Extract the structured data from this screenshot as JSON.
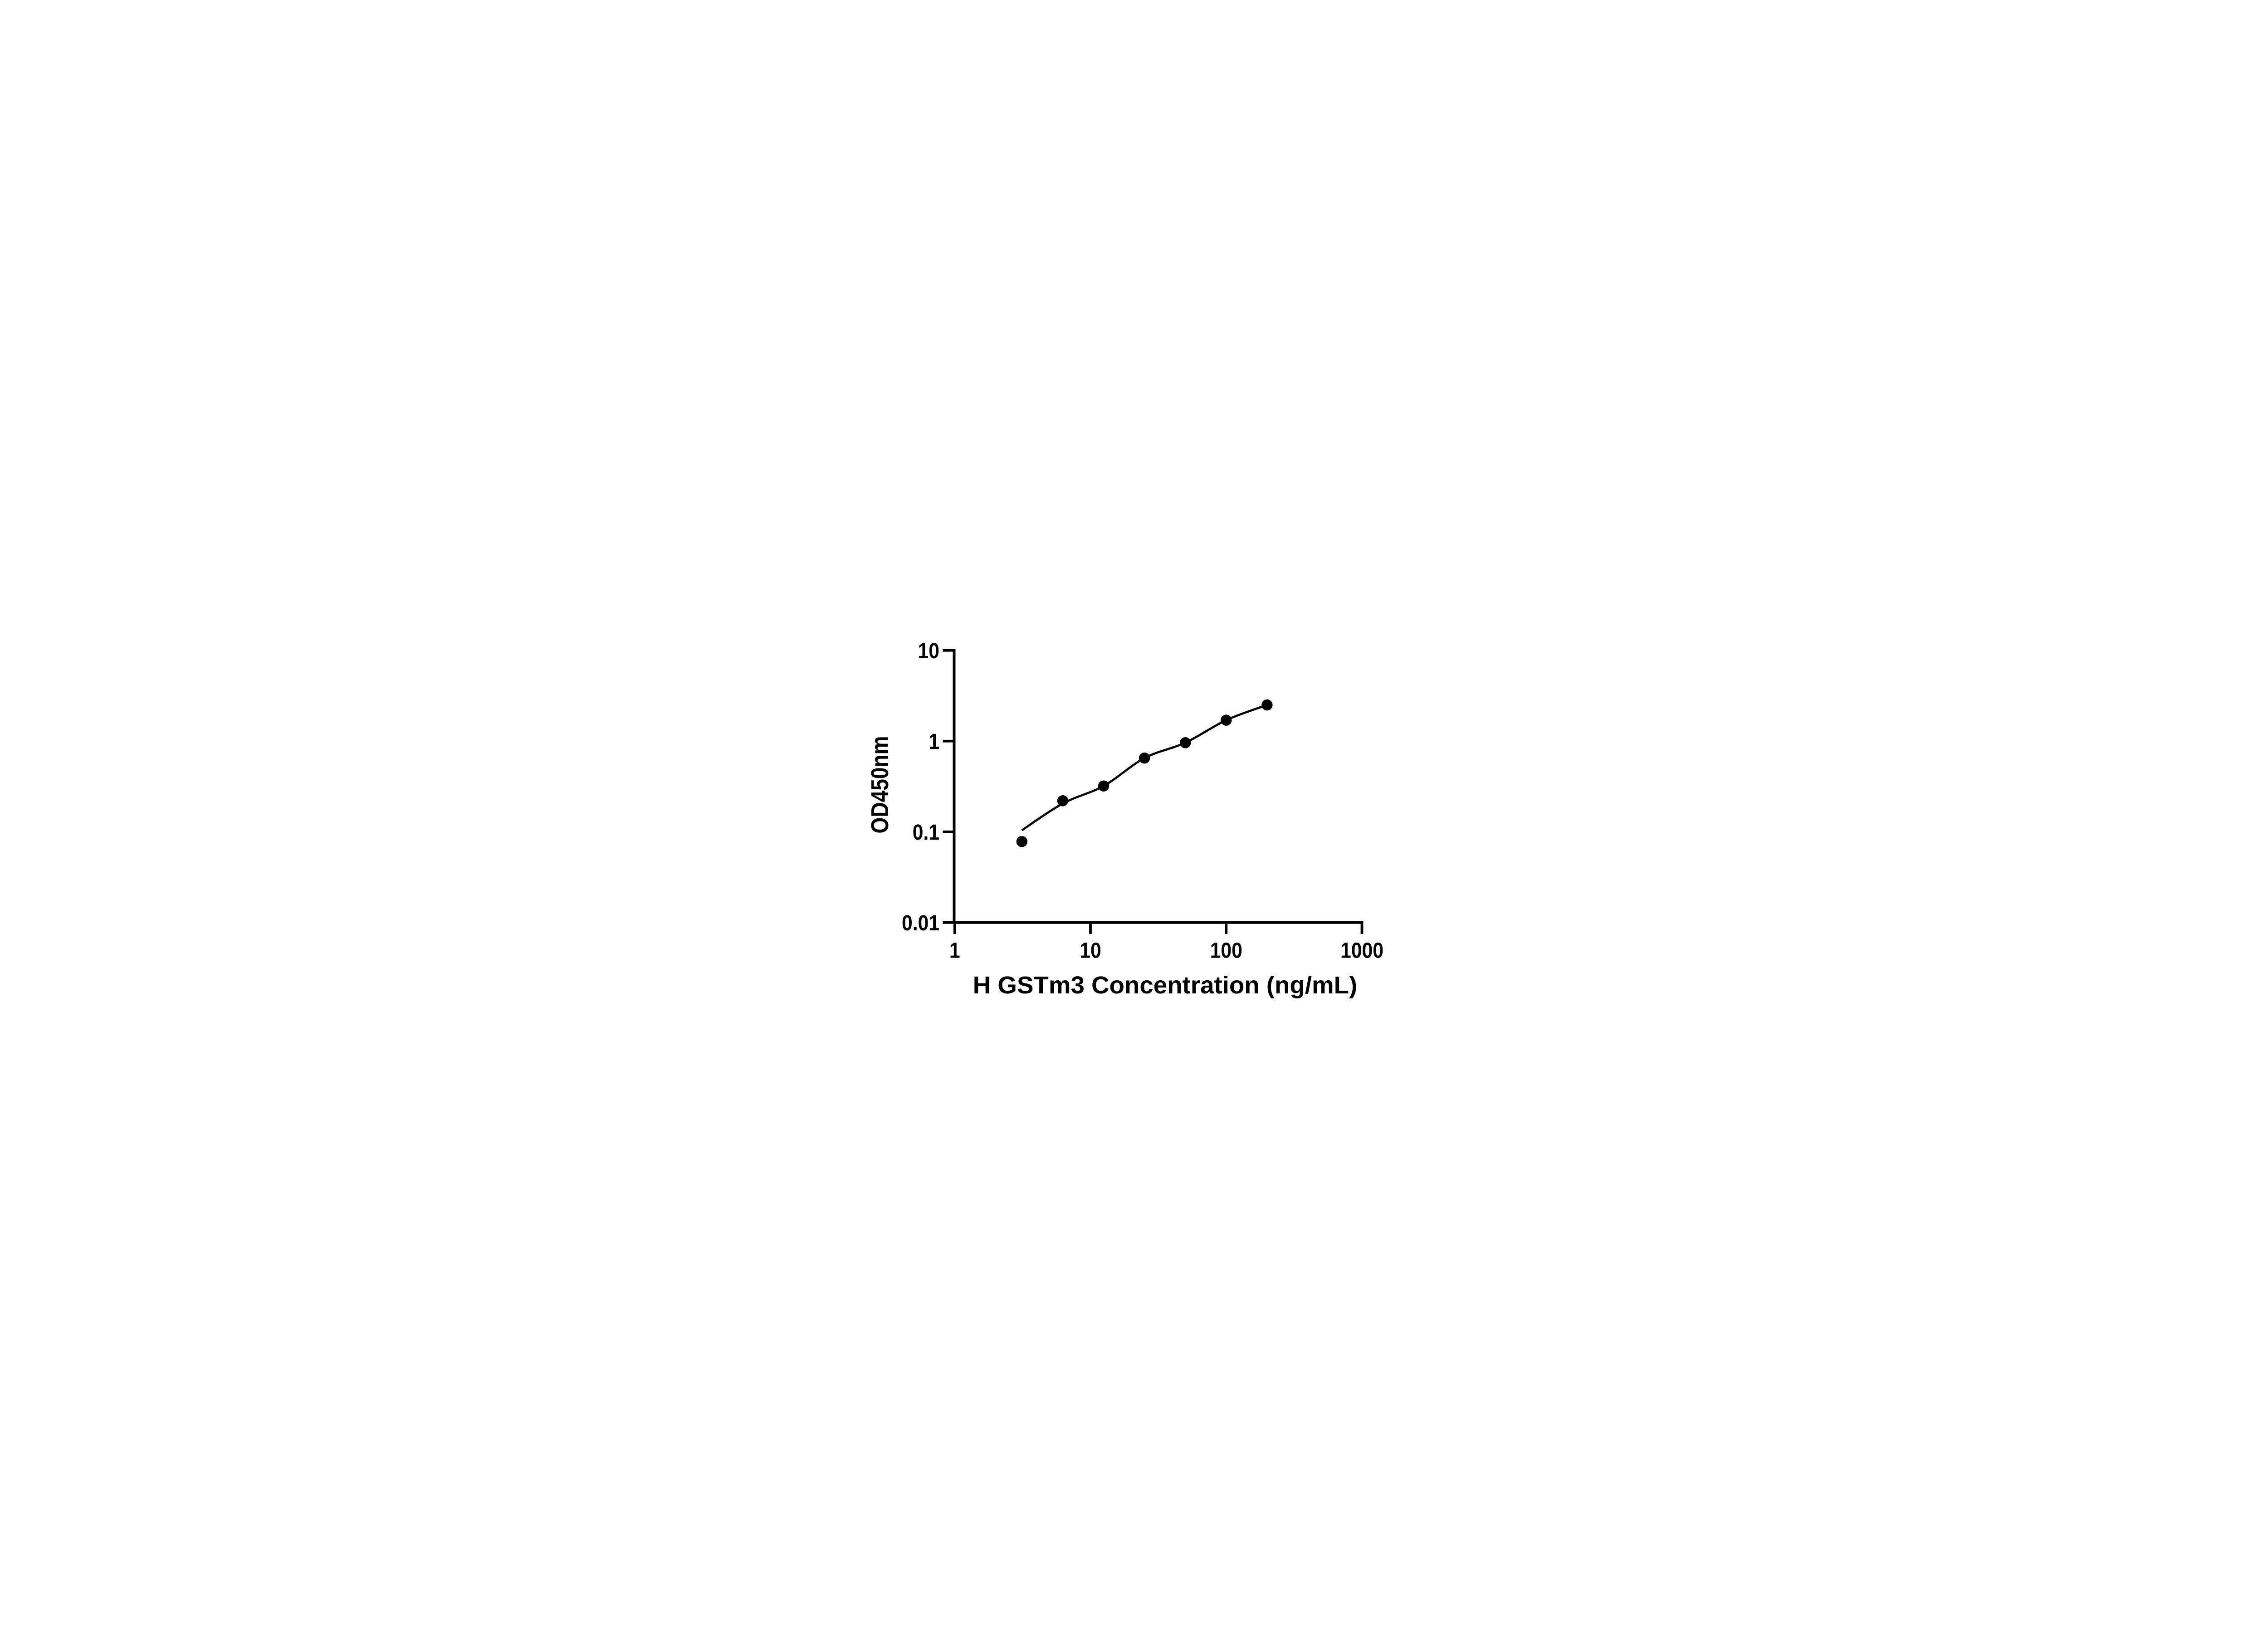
{
  "figure": {
    "background_color": "#ffffff",
    "text_color": "#000000",
    "axis_color": "#000000"
  },
  "chart_data": {
    "type": "scatter",
    "title": "",
    "xlabel": "H GSTm3 Concentration (ng/mL)",
    "ylabel": "OD450nm",
    "x_scale": "log10",
    "y_scale": "log10",
    "xlim": [
      1,
      1000
    ],
    "ylim": [
      0.01,
      10
    ],
    "grid": false,
    "legend": false,
    "x_ticks": {
      "values": [
        1,
        10,
        100,
        1000
      ],
      "labels": [
        "1",
        "10",
        "100",
        "1000"
      ]
    },
    "y_ticks": {
      "values": [
        10,
        1,
        0.1,
        0.01
      ],
      "labels": [
        "10",
        "1",
        "0.1",
        "0.01"
      ]
    },
    "series": [
      {
        "name": "standard-points",
        "kind": "scatter",
        "marker": "filled-circle",
        "color": "#000000",
        "x": [
          3.125,
          6.25,
          12.5,
          25,
          50,
          100,
          200
        ],
        "y": [
          0.078,
          0.22,
          0.32,
          0.65,
          0.96,
          1.7,
          2.5
        ]
      },
      {
        "name": "fit-curve",
        "kind": "smooth-line",
        "color": "#000000",
        "x": [
          3.125,
          6.25,
          12.5,
          25,
          50,
          100,
          200
        ],
        "y": [
          0.104,
          0.205,
          0.32,
          0.65,
          0.96,
          1.7,
          2.5
        ]
      }
    ]
  }
}
